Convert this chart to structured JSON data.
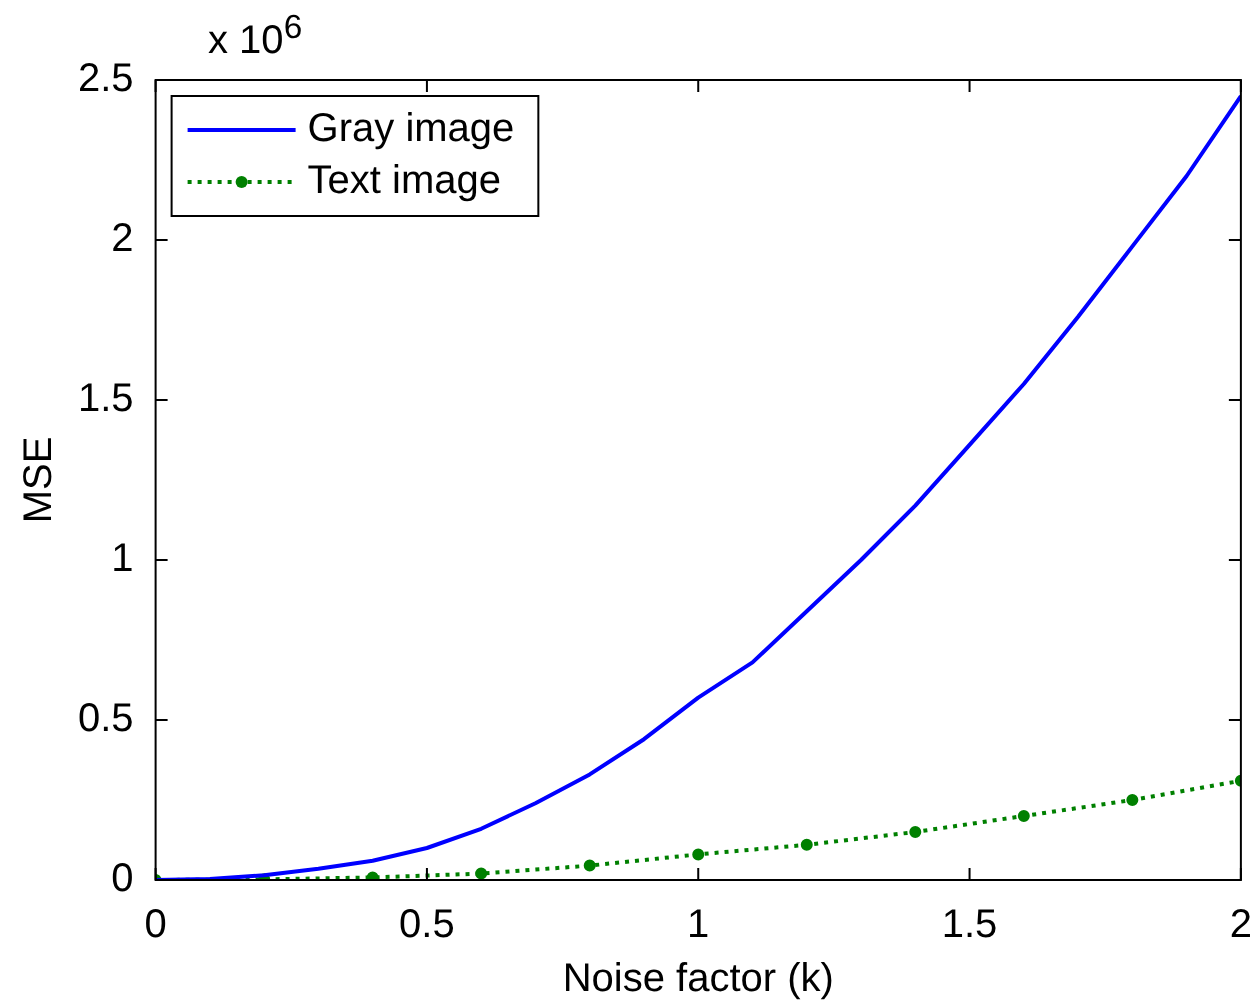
{
  "chart_data": {
    "type": "line",
    "xlabel": "Noise factor (k)",
    "ylabel": "MSE",
    "annotations": [
      "x 10$^{6}$"
    ],
    "xlim": [
      0,
      2
    ],
    "xticks": [
      0,
      0.5,
      1,
      1.5,
      2
    ],
    "ylim": [
      0,
      2.5
    ],
    "yticks": [
      0,
      0.5,
      1,
      1.5,
      2,
      2.5
    ],
    "grid": false,
    "legend": "top left",
    "series": [
      {
        "name": "Gray image",
        "color": "#0000ff",
        "line_style": "solid",
        "marker": "none",
        "x": [
          0,
          0.1,
          0.2,
          0.3,
          0.4,
          0.5,
          0.6,
          0.7,
          0.8,
          0.9,
          1,
          1.1,
          1.2,
          1.3,
          1.4,
          1.5,
          1.6,
          1.7,
          1.8,
          1.9,
          2
        ],
        "values": [
          0,
          0.003,
          0.015,
          0.035,
          0.06,
          0.1,
          0.16,
          0.24,
          0.33,
          0.44,
          0.57,
          0.68,
          0.84,
          1.0,
          1.17,
          1.36,
          1.55,
          1.76,
          1.98,
          2.2,
          2.45
        ]
      },
      {
        "name": "Text image",
        "color": "#008000",
        "line_style": "dotted",
        "marker": "circle",
        "x": [
          0,
          0.2,
          0.4,
          0.6,
          0.8,
          1,
          1.2,
          1.4,
          1.6,
          1.8,
          2
        ],
        "values": [
          0,
          0.002,
          0.008,
          0.02,
          0.045,
          0.08,
          0.11,
          0.15,
          0.2,
          0.25,
          0.31
        ]
      }
    ]
  }
}
